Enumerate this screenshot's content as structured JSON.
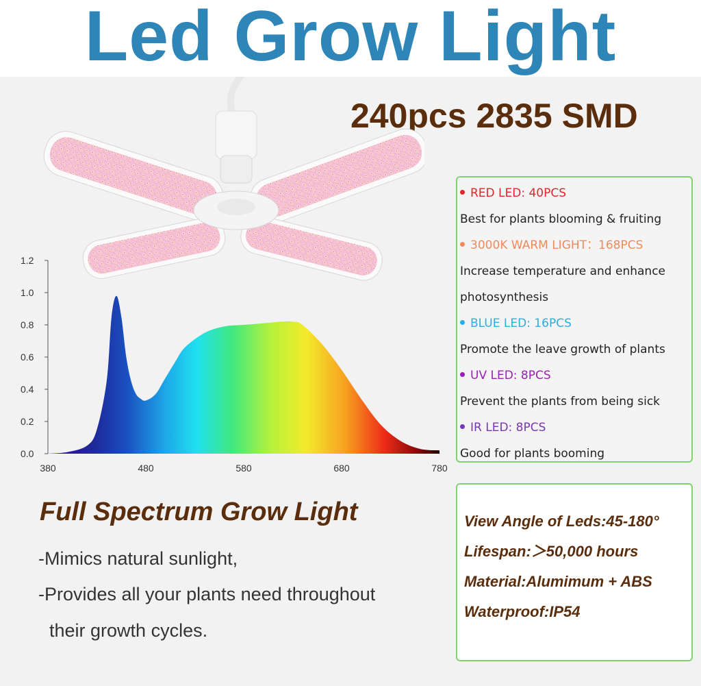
{
  "title": "Led Grow Light",
  "subtitle": "240pcs 2835 SMD",
  "spec_items": [
    {
      "label": "RED LED: 40PCS",
      "color": "#e0262a",
      "desc": "Best for plants blooming & fruiting"
    },
    {
      "label": "3000K WARM LIGHT：168PCS",
      "color": "#f08a5a",
      "desc": "Increase temperature and enhance",
      "desc2": "photosynthesis"
    },
    {
      "label": "BLUE LED: 16PCS",
      "color": "#29aee0",
      "desc": "Promote the leave growth of plants"
    },
    {
      "label": "UV LED: 8PCS",
      "color": "#9b1fb5",
      "desc": "Prevent the plants from being sick"
    },
    {
      "label": "IR LED: 8PCS",
      "color": "#7a35b0",
      "desc": "Good for plants booming"
    }
  ],
  "features": [
    "View Angle of Leds:45-180°",
    "Lifespan:＞50,000 hours",
    "Material:Alumimum + ABS",
    "Waterproof:IP54"
  ],
  "full_spectrum": {
    "title": "Full Spectrum Grow Light",
    "line1": "-Mimics natural sunlight,",
    "line2": "-Provides all your plants need throughout",
    "line3": "their growth cycles."
  },
  "chart_data": {
    "type": "area",
    "title": "",
    "xlabel": "",
    "ylabel": "",
    "xlim": [
      380,
      780
    ],
    "ylim": [
      0,
      1.2
    ],
    "x_ticks": [
      380,
      480,
      580,
      680,
      780
    ],
    "y_ticks": [
      "0.0",
      "0.2",
      "0.4",
      "0.6",
      "0.8",
      "1.0",
      "1.2"
    ],
    "x": [
      380,
      400,
      420,
      430,
      440,
      445,
      450,
      455,
      460,
      465,
      470,
      475,
      480,
      490,
      500,
      510,
      520,
      540,
      560,
      580,
      600,
      620,
      630,
      640,
      660,
      680,
      700,
      720,
      740,
      760,
      780
    ],
    "values": [
      0.0,
      0.01,
      0.05,
      0.15,
      0.45,
      0.85,
      0.98,
      0.85,
      0.6,
      0.45,
      0.37,
      0.34,
      0.33,
      0.37,
      0.47,
      0.57,
      0.66,
      0.75,
      0.79,
      0.8,
      0.81,
      0.82,
      0.82,
      0.8,
      0.68,
      0.52,
      0.34,
      0.18,
      0.08,
      0.03,
      0.02
    ]
  }
}
